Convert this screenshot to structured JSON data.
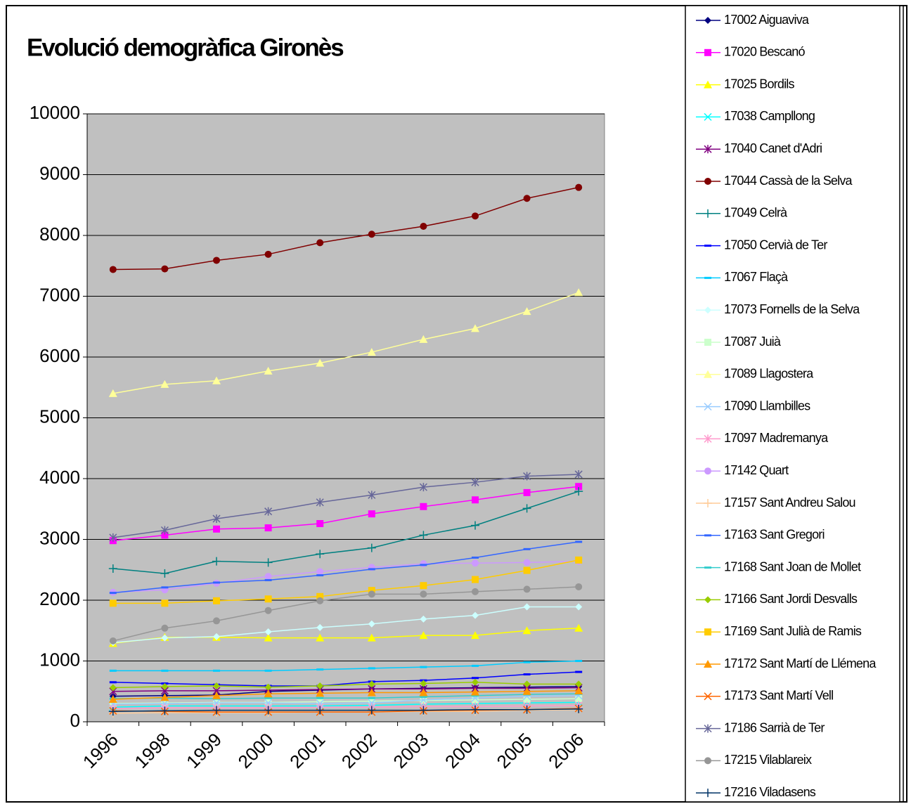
{
  "chart_data": {
    "type": "line",
    "title": "Evolució demogràfica Gironès",
    "categories": [
      "1996",
      "1998",
      "1999",
      "2000",
      "2001",
      "2002",
      "2003",
      "2004",
      "2005",
      "2006"
    ],
    "ylim": [
      0,
      10000
    ],
    "yticks": [
      0,
      1000,
      2000,
      3000,
      4000,
      5000,
      6000,
      7000,
      8000,
      9000,
      10000
    ],
    "grid": true,
    "legend": "right",
    "series": [
      {
        "name": "17002 Aiguaviva",
        "color": "#000080",
        "marker": "diamond",
        "values": [
          420,
          430,
          440,
          500,
          520,
          540,
          550,
          560,
          570,
          580
        ]
      },
      {
        "name": "17020 Bescanó",
        "color": "#ff00ff",
        "marker": "square",
        "values": [
          2980,
          3070,
          3170,
          3190,
          3260,
          3420,
          3540,
          3650,
          3770,
          3870
        ]
      },
      {
        "name": "17025 Bordils",
        "color": "#ffff00",
        "marker": "triangle",
        "values": [
          1290,
          1390,
          1390,
          1380,
          1380,
          1380,
          1420,
          1420,
          1500,
          1540
        ]
      },
      {
        "name": "17038 Campllong",
        "color": "#00ffff",
        "marker": "x",
        "values": [
          240,
          260,
          260,
          260,
          260,
          270,
          290,
          300,
          310,
          320
        ]
      },
      {
        "name": "17040 Canet d'Adri",
        "color": "#800080",
        "marker": "star",
        "values": [
          500,
          510,
          510,
          520,
          530,
          540,
          540,
          550,
          550,
          560
        ]
      },
      {
        "name": "17044 Cassà de la Selva",
        "color": "#800000",
        "marker": "circle",
        "values": [
          7440,
          7450,
          7590,
          7690,
          7880,
          8020,
          8150,
          8320,
          8610,
          8790
        ]
      },
      {
        "name": "17049 Celrà",
        "color": "#008080",
        "marker": "plus",
        "values": [
          2520,
          2440,
          2640,
          2620,
          2760,
          2860,
          3070,
          3230,
          3510,
          3790
        ]
      },
      {
        "name": "17050 Cervià de Ter",
        "color": "#0000ff",
        "marker": "dash",
        "values": [
          650,
          630,
          610,
          590,
          590,
          660,
          680,
          720,
          780,
          820
        ]
      },
      {
        "name": "17067 Flaçà",
        "color": "#00ccff",
        "marker": "dash",
        "values": [
          840,
          840,
          840,
          840,
          860,
          880,
          900,
          920,
          980,
          1000
        ]
      },
      {
        "name": "17073 Fornells de la Selva",
        "color": "#ccffff",
        "marker": "diamond",
        "values": [
          1300,
          1380,
          1400,
          1480,
          1550,
          1610,
          1690,
          1750,
          1890,
          1890
        ]
      },
      {
        "name": "17087 Juià",
        "color": "#ccffcc",
        "marker": "square",
        "values": [
          300,
          310,
          320,
          320,
          330,
          340,
          350,
          360,
          370,
          380
        ]
      },
      {
        "name": "17089 Llagostera",
        "color": "#ffff99",
        "marker": "triangle",
        "values": [
          5400,
          5550,
          5610,
          5770,
          5900,
          6080,
          6290,
          6470,
          6750,
          7060
        ]
      },
      {
        "name": "17090 Llambilles",
        "color": "#99ccff",
        "marker": "x",
        "values": [
          290,
          300,
          310,
          310,
          300,
          310,
          360,
          390,
          420,
          430
        ]
      },
      {
        "name": "17097 Madremanya",
        "color": "#ff99cc",
        "marker": "star",
        "values": [
          220,
          230,
          230,
          230,
          240,
          240,
          250,
          250,
          260,
          270
        ]
      },
      {
        "name": "17142 Quart",
        "color": "#cc99ff",
        "marker": "circle",
        "values": [
          2130,
          2170,
          2280,
          2390,
          2470,
          2540,
          2600,
          2610,
          2620,
          2640
        ]
      },
      {
        "name": "17157 Sant Andreu Salou",
        "color": "#ffcc99",
        "marker": "plus",
        "values": [
          140,
          150,
          150,
          150,
          160,
          160,
          170,
          170,
          190,
          200
        ]
      },
      {
        "name": "17163 Sant Gregori",
        "color": "#3366ff",
        "marker": "dash",
        "values": [
          2120,
          2210,
          2290,
          2330,
          2410,
          2510,
          2580,
          2700,
          2840,
          2960
        ]
      },
      {
        "name": "17168 Sant Joan de Mollet",
        "color": "#33cccc",
        "marker": "dash",
        "values": [
          380,
          390,
          380,
          390,
          390,
          390,
          410,
          430,
          450,
          460
        ]
      },
      {
        "name": "17166 Sant Jordi Desvalls",
        "color": "#99cc00",
        "marker": "diamond",
        "values": [
          560,
          580,
          590,
          570,
          590,
          620,
          630,
          650,
          620,
          620
        ]
      },
      {
        "name": "17169 Sant Julià de Ramis",
        "color": "#ffcc00",
        "marker": "square",
        "values": [
          1950,
          1950,
          1990,
          2020,
          2060,
          2160,
          2240,
          2340,
          2490,
          2660
        ]
      },
      {
        "name": "17172 Sant Martí de Llémena",
        "color": "#ff9900",
        "marker": "triangle",
        "values": [
          370,
          400,
          430,
          460,
          470,
          480,
          480,
          490,
          500,
          510
        ]
      },
      {
        "name": "17173 Sant Martí Vell",
        "color": "#ff6600",
        "marker": "x",
        "values": [
          180,
          170,
          160,
          160,
          160,
          160,
          180,
          190,
          200,
          220
        ]
      },
      {
        "name": "17186 Sarrià de Ter",
        "color": "#666699",
        "marker": "star",
        "values": [
          3030,
          3150,
          3340,
          3460,
          3610,
          3730,
          3860,
          3940,
          4040,
          4070
        ]
      },
      {
        "name": "17215 Vilablareix",
        "color": "#969696",
        "marker": "circle",
        "values": [
          1330,
          1540,
          1660,
          1830,
          1990,
          2100,
          2100,
          2140,
          2180,
          2220
        ]
      },
      {
        "name": "17216 Viladasens",
        "color": "#003366",
        "marker": "plus",
        "values": [
          170,
          180,
          190,
          190,
          190,
          190,
          190,
          200,
          200,
          210
        ]
      }
    ]
  }
}
